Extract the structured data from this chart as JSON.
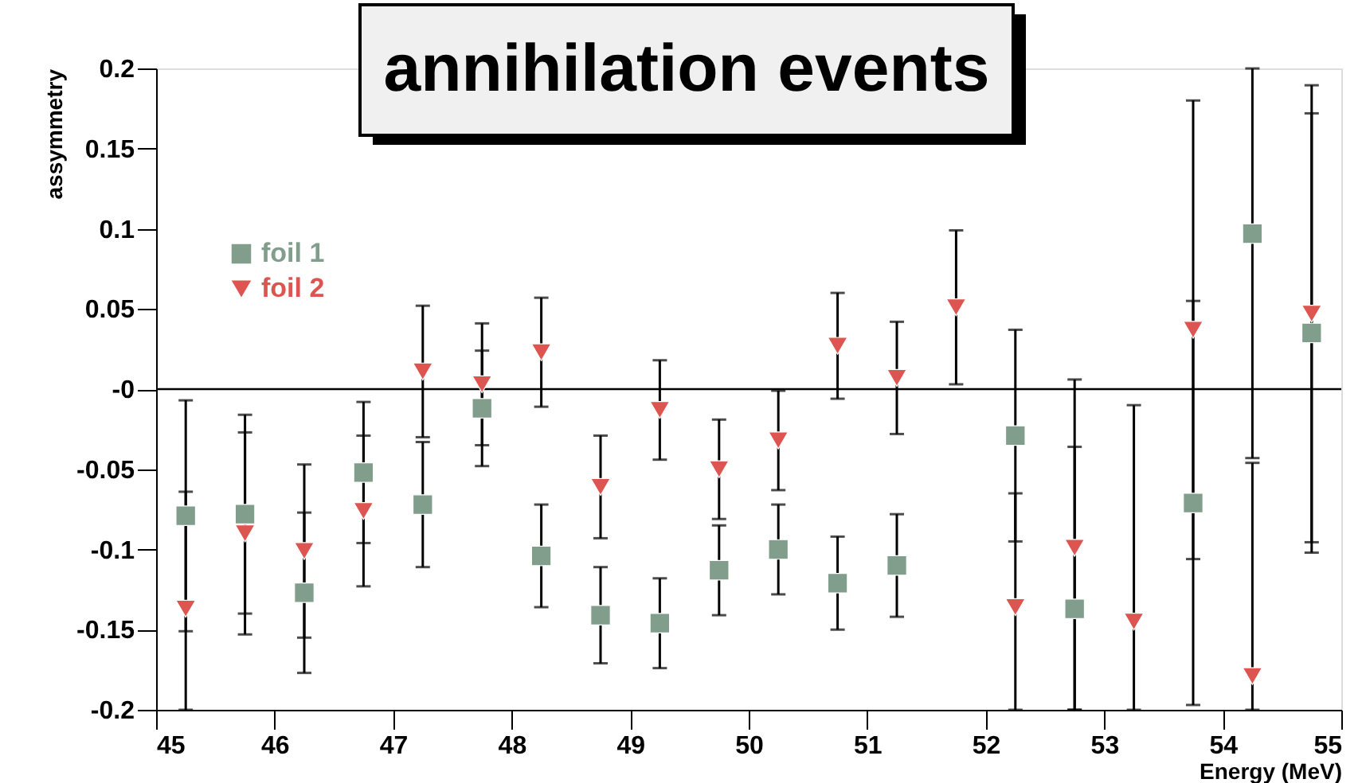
{
  "chart_data": {
    "type": "scatter",
    "title": "annihilation events",
    "xlabel": "Energy (MeV)",
    "ylabel": "assymmetry",
    "xlim": [
      45,
      55
    ],
    "xticks": [
      45,
      46,
      47,
      48,
      49,
      50,
      51,
      52,
      53,
      54,
      55
    ],
    "ylim": [
      -0.2,
      0.2
    ],
    "yticks": [
      -0.2,
      -0.15,
      -0.1,
      -0.05,
      {
        "value": 0,
        "label": "-0"
      },
      0.05,
      0.1,
      0.15,
      0.2
    ],
    "grid": false,
    "legend": "top left",
    "ref_lines": [
      {
        "axis": "y",
        "value": 0,
        "color": "#000000"
      }
    ],
    "series": [
      {
        "name": "foil 1",
        "color": "#819d8c",
        "marker": "square",
        "x": [
          45.25,
          45.75,
          46.25,
          46.75,
          47.25,
          47.75,
          48.25,
          48.75,
          49.25,
          49.75,
          50.25,
          50.75,
          51.25,
          52.25,
          52.75,
          53.75,
          54.25,
          54.75
        ],
        "values": [
          -0.079,
          -0.078,
          -0.127,
          -0.052,
          -0.072,
          -0.012,
          -0.104,
          -0.141,
          -0.146,
          -0.113,
          -0.1,
          -0.121,
          -0.11,
          -0.029,
          -0.137,
          -0.071,
          0.097,
          0.035
        ],
        "errors": [
          0.072,
          0.062,
          0.05,
          0.044,
          0.039,
          0.036,
          0.032,
          0.03,
          0.028,
          0.028,
          0.028,
          0.029,
          0.032,
          0.066,
          [
            -0.2,
            -0.036
          ],
          0.126,
          [
            -0.043,
            0.2
          ],
          0.137
        ]
      },
      {
        "name": "foil 2",
        "color": "#dc5550",
        "marker": "triangle",
        "x": [
          45.25,
          45.75,
          46.25,
          46.75,
          47.25,
          47.75,
          48.25,
          48.75,
          49.25,
          49.75,
          50.25,
          50.75,
          51.25,
          51.75,
          52.25,
          52.75,
          53.25,
          53.75,
          54.25,
          54.75
        ],
        "values": [
          -0.137,
          -0.09,
          -0.101,
          -0.076,
          0.011,
          0.003,
          0.023,
          -0.061,
          -0.013,
          -0.05,
          -0.032,
          0.027,
          0.007,
          0.051,
          -0.136,
          -0.099,
          -0.145,
          0.037,
          -0.179,
          0.047
        ],
        "errors": [
          [
            -0.2,
            -0.064
          ],
          0.063,
          0.054,
          0.047,
          0.041,
          0.038,
          0.034,
          0.032,
          0.031,
          0.031,
          0.031,
          0.033,
          0.035,
          0.048,
          [
            -0.2,
            -0.065
          ],
          [
            -0.2,
            0.006
          ],
          [
            -0.2,
            -0.01
          ],
          0.143,
          [
            -0.2,
            -0.046
          ],
          0.1425
        ]
      }
    ]
  }
}
